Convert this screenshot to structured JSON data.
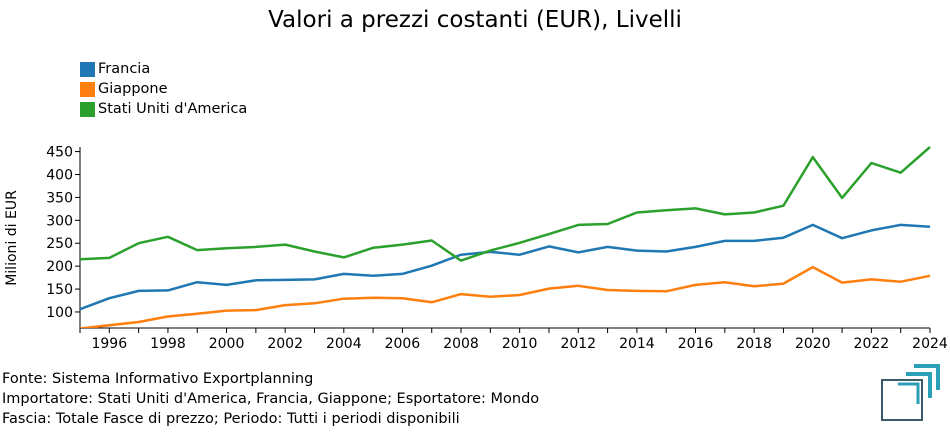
{
  "chart_data": {
    "type": "line",
    "title": "Valori a prezzi costanti (EUR), Livelli",
    "ylabel": "Milioni di EUR",
    "xlabel": "",
    "xlim": [
      1995,
      2024
    ],
    "ylim": [
      65,
      460
    ],
    "yticks": [
      100,
      150,
      200,
      250,
      300,
      350,
      400,
      450
    ],
    "xticks": [
      1996,
      1998,
      2000,
      2002,
      2004,
      2006,
      2008,
      2010,
      2012,
      2014,
      2016,
      2018,
      2020,
      2022,
      2024
    ],
    "x": [
      1995,
      1996,
      1997,
      1998,
      1999,
      2000,
      2001,
      2002,
      2003,
      2004,
      2005,
      2006,
      2007,
      2008,
      2009,
      2010,
      2011,
      2012,
      2013,
      2014,
      2015,
      2016,
      2017,
      2018,
      2019,
      2020,
      2021,
      2022,
      2023,
      2024
    ],
    "legend_position": "top-left",
    "grid": false,
    "series": [
      {
        "name": "Francia",
        "color": "#1f77b4",
        "values": [
          106,
          130,
          146,
          147,
          165,
          159,
          169,
          170,
          171,
          183,
          179,
          183,
          201,
          225,
          231,
          225,
          243,
          230,
          242,
          234,
          232,
          242,
          255,
          255,
          262,
          290,
          261,
          278,
          290,
          286
        ]
      },
      {
        "name": "Giappone",
        "color": "#ff7f0e",
        "values": [
          64,
          71,
          78,
          90,
          96,
          103,
          104,
          115,
          119,
          129,
          131,
          130,
          121,
          139,
          133,
          137,
          151,
          157,
          148,
          146,
          145,
          159,
          165,
          156,
          162,
          198,
          164,
          171,
          166,
          179
        ]
      },
      {
        "name": "Stati Uniti d'America",
        "color": "#2ca02c",
        "values": [
          215,
          218,
          250,
          264,
          235,
          239,
          242,
          247,
          232,
          219,
          240,
          247,
          256,
          212,
          234,
          251,
          270,
          290,
          292,
          317,
          322,
          326,
          313,
          317,
          332,
          438,
          349,
          425,
          404,
          460
        ]
      }
    ]
  },
  "footer": {
    "line1": "Fonte: Sistema Informativo Exportplanning",
    "line2": "Importatore: Stati Uniti d'America, Francia, Giappone; Esportatore: Mondo",
    "line3": "Fascia: Totale Fasce di prezzo; Periodo: Tutti i periodi disponibili"
  },
  "logo": {
    "icon": "exportplanning-logo-icon",
    "colors": [
      "#2a9fb5",
      "#3c5a6a"
    ]
  }
}
